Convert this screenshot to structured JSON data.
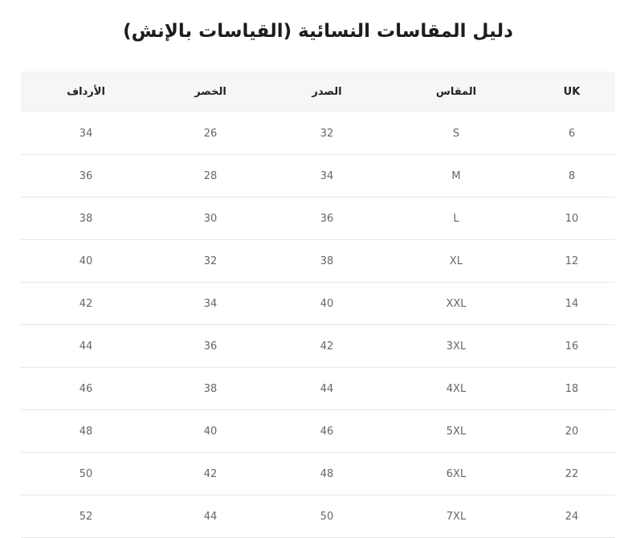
{
  "title": "دليل المقاسات النسائية (القياسات بالإنش)",
  "headers": [
    "UK",
    "المقاس",
    "الصدر",
    "الخصر",
    "الأرداف"
  ],
  "rows": [
    [
      "6",
      "S",
      "32",
      "26",
      "34"
    ],
    [
      "8",
      "M",
      "34",
      "28",
      "36"
    ],
    [
      "10",
      "L",
      "36",
      "30",
      "38"
    ],
    [
      "12",
      "XL",
      "38",
      "32",
      "40"
    ],
    [
      "14",
      "XXL",
      "40",
      "34",
      "42"
    ],
    [
      "16",
      "3XL",
      "42",
      "36",
      "44"
    ],
    [
      "18",
      "4XL",
      "44",
      "38",
      "46"
    ],
    [
      "20",
      "5XL",
      "46",
      "40",
      "48"
    ],
    [
      "22",
      "6XL",
      "48",
      "42",
      "50"
    ],
    [
      "24",
      "7XL",
      "50",
      "44",
      "52"
    ]
  ]
}
